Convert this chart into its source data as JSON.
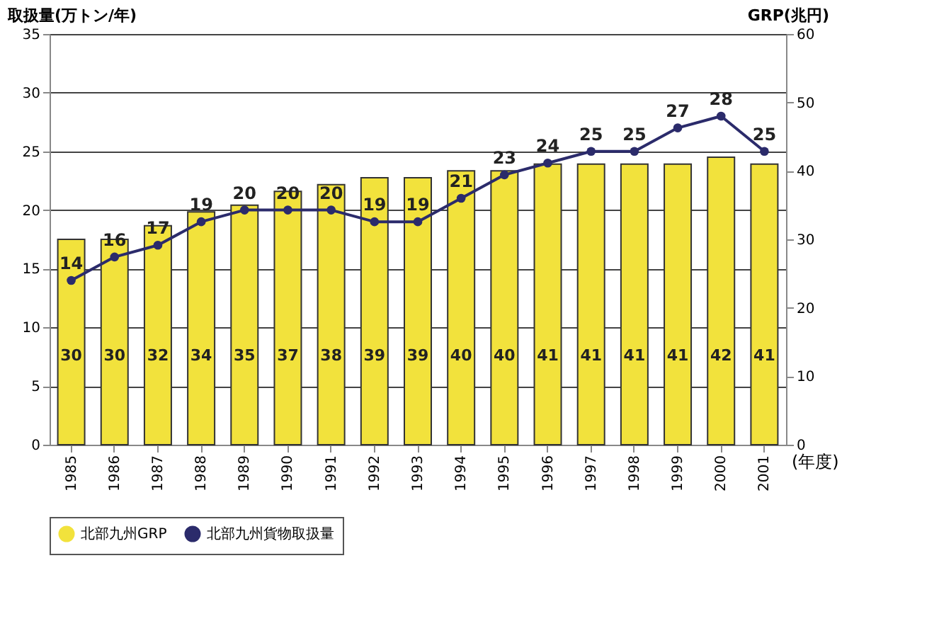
{
  "chart_data": {
    "type": "bar",
    "ylabel": "取扱量(万トン/年)",
    "y2label": "GRP(兆円)",
    "categories": [
      "1985",
      "1986",
      "1987",
      "1988",
      "1989",
      "1990",
      "1991",
      "1992",
      "1993",
      "1994",
      "1995",
      "1996",
      "1997",
      "1998",
      "1999",
      "2000",
      "2001"
    ],
    "series": [
      {
        "name": "北部九州GRP",
        "axis": "y2",
        "color": "#f2e23c",
        "values": [
          30,
          30,
          32,
          34,
          35,
          37,
          38,
          39,
          39,
          40,
          40,
          41,
          41,
          41,
          41,
          42,
          41
        ]
      },
      {
        "name": "北部九州貨物取扱量",
        "type": "line",
        "color": "#2b2b6b",
        "values": [
          14,
          16,
          17,
          19,
          20,
          20,
          20,
          19,
          19,
          21,
          23,
          24,
          25,
          25,
          27,
          28,
          25
        ]
      }
    ],
    "ylim": [
      0,
      35
    ],
    "yticks": [
      0,
      5,
      10,
      15,
      20,
      25,
      30,
      35
    ],
    "y2lim": [
      0,
      60
    ],
    "y2ticks": [
      0,
      10,
      20,
      30,
      40,
      50,
      60
    ],
    "grid": "y",
    "legend": "bottom",
    "marker": "circle",
    "line_style": "solid",
    "data_labels": true,
    "annotations": [
      "(年度)"
    ]
  }
}
